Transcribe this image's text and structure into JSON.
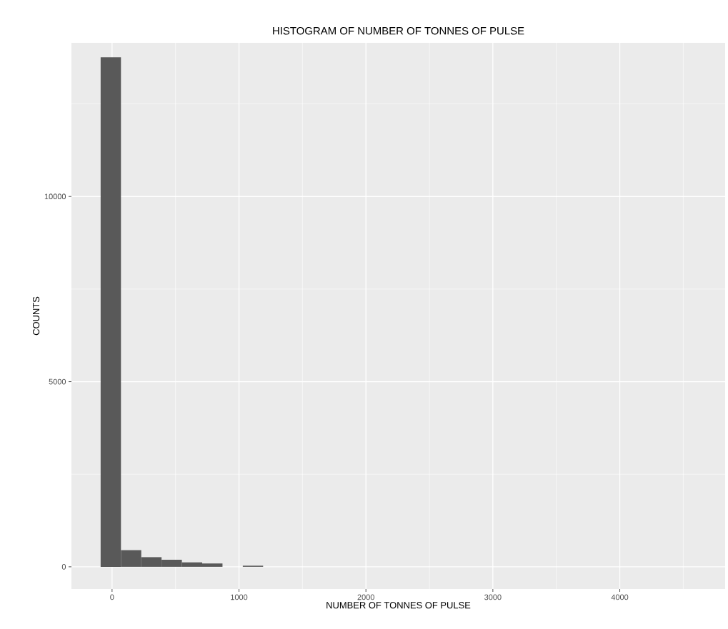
{
  "chart_data": {
    "type": "histogram",
    "title": "HISTOGRAM OF NUMBER OF TONNES OF PULSE",
    "xlabel": "NUMBER OF TONNES OF PULSE",
    "ylabel": "COUNTS",
    "bins": [
      -90,
      70,
      230,
      390,
      550,
      710,
      870,
      1030,
      1190,
      1350,
      1510,
      1670,
      1830,
      1990,
      2150,
      2310,
      2470,
      2630,
      2790,
      2950,
      3110,
      3270,
      3430,
      3590,
      3750,
      3910,
      4070,
      4230,
      4390,
      4550,
      4710
    ],
    "values": [
      13760,
      450,
      260,
      190,
      120,
      90,
      0,
      30,
      0,
      0,
      0,
      0,
      0,
      0,
      0,
      0,
      0,
      0,
      0,
      0,
      0,
      0,
      0,
      0,
      0,
      0,
      0,
      0,
      0,
      0
    ],
    "color": "#595959",
    "xlim": [
      -320,
      4830
    ],
    "ylim": [
      -600,
      14150
    ],
    "xticks": [
      0,
      1000,
      2000,
      3000,
      4000
    ],
    "yticks": [
      0,
      5000,
      10000
    ],
    "grid": true
  }
}
